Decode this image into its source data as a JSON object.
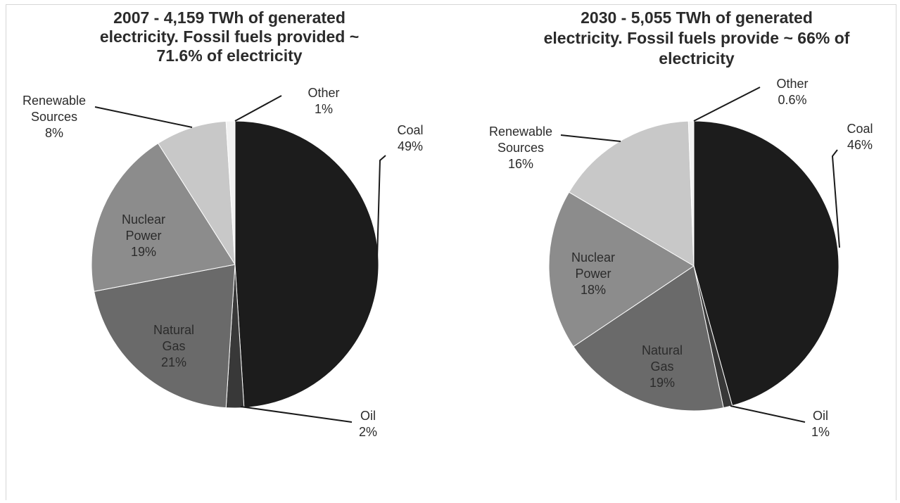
{
  "chart_data": [
    {
      "type": "pie",
      "title_lines": [
        "2007 - 4,159 TWh of generated",
        "electricity. Fossil fuels provided ~",
        "71.6% of electricity"
      ],
      "slices": [
        {
          "name": "Coal",
          "value": 49,
          "label_lines": [
            "Coal",
            "49%"
          ],
          "color": "#1c1c1c"
        },
        {
          "name": "Oil",
          "value": 2,
          "label_lines": [
            "Oil",
            "2%"
          ],
          "color": "#383838"
        },
        {
          "name": "Natural Gas",
          "value": 21,
          "label_lines": [
            "Natural",
            "Gas",
            "21%"
          ],
          "color": "#6a6a6a"
        },
        {
          "name": "Nuclear Power",
          "value": 19,
          "label_lines": [
            "Nuclear",
            "Power",
            "19%"
          ],
          "color": "#8c8c8c"
        },
        {
          "name": "Renewable Sources",
          "value": 8,
          "label_lines": [
            "Renewable",
            "Sources",
            "8%"
          ],
          "color": "#c8c8c8"
        },
        {
          "name": "Other",
          "value": 1,
          "label_lines": [
            "Other",
            "1%"
          ],
          "color": "#f2f2f2"
        }
      ]
    },
    {
      "type": "pie",
      "title_lines": [
        "2030 - 5,055 TWh of generated",
        "electricity. Fossil fuels provide ~ 66% of",
        "electricity"
      ],
      "slices": [
        {
          "name": "Coal",
          "value": 46,
          "label_lines": [
            "Coal",
            "46%"
          ],
          "color": "#1c1c1c"
        },
        {
          "name": "Oil",
          "value": 1,
          "label_lines": [
            "Oil",
            "1%"
          ],
          "color": "#383838"
        },
        {
          "name": "Natural Gas",
          "value": 19,
          "label_lines": [
            "Natural",
            "Gas",
            "19%"
          ],
          "color": "#6a6a6a"
        },
        {
          "name": "Nuclear Power",
          "value": 18,
          "label_lines": [
            "Nuclear",
            "Power",
            "18%"
          ],
          "color": "#8c8c8c"
        },
        {
          "name": "Renewable Sources",
          "value": 16,
          "label_lines": [
            "Renewable",
            "Sources",
            "16%"
          ],
          "color": "#c8c8c8"
        },
        {
          "name": "Other",
          "value": 0.6,
          "label_lines": [
            "Other",
            "0.6%"
          ],
          "color": "#f2f2f2"
        }
      ]
    }
  ]
}
